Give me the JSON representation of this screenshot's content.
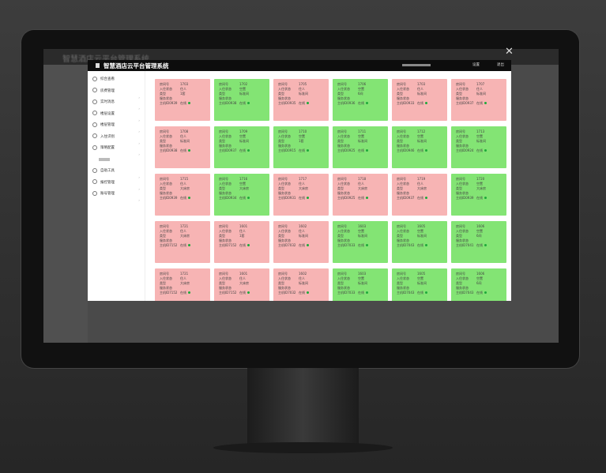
{
  "background_app": {
    "title": "智慧酒店云平台管理系统"
  },
  "modal": {
    "title": "智慧酒店云平台管理系统",
    "header_actions": [
      "设置",
      "退出"
    ],
    "menu": [
      "综合查看",
      "房费管理",
      "实时消息",
      "楼层设置",
      "楼层管理",
      "入住识别",
      "策略配置",
      "自助工具",
      "报控管理",
      "账号管理"
    ],
    "card_labels": [
      "房间号",
      "入住状态",
      "类型",
      "服务状态"
    ],
    "online": "在线",
    "rooms": [
      {
        "number": "1703",
        "status": "住人",
        "type": "1套",
        "host": "主机ID0939",
        "color": "#f7b4b4"
      },
      {
        "number": "1702",
        "status": "空置",
        "type": "标准间",
        "host": "主机ID0938",
        "color": "#83e474"
      },
      {
        "number": "1705",
        "status": "住人",
        "type": "标准间",
        "host": "主机ID0935",
        "color": "#f7b4b4"
      },
      {
        "number": "1706",
        "status": "空置",
        "type": "6间",
        "host": "主机ID0936",
        "color": "#83e474"
      },
      {
        "number": "1703",
        "status": "住人",
        "type": "标准间",
        "host": "主机ID0933",
        "color": "#f7b4b4"
      },
      {
        "number": "1707",
        "status": "住人",
        "type": "标准间",
        "host": "主机ID0937",
        "color": "#f7b4b4"
      },
      {
        "number": "1708",
        "status": "住人",
        "type": "标准间",
        "host": "主机ID0938",
        "color": "#f7b4b4"
      },
      {
        "number": "1709",
        "status": "空置",
        "type": "标准间",
        "host": "主机ID0937",
        "color": "#83e474"
      },
      {
        "number": "1710",
        "status": "空置",
        "type": "1套",
        "host": "主机ID0915",
        "color": "#83e474"
      },
      {
        "number": "1711",
        "status": "空置",
        "type": "标准间",
        "host": "主机ID0925",
        "color": "#83e474"
      },
      {
        "number": "1712",
        "status": "空置",
        "type": "标准间",
        "host": "主机ID0946",
        "color": "#83e474"
      },
      {
        "number": "1713",
        "status": "空置",
        "type": "标准间",
        "host": "主机ID0924",
        "color": "#83e474"
      },
      {
        "number": "1715",
        "status": "住人",
        "type": "大床房",
        "host": "主机ID0939",
        "color": "#f7b4b4"
      },
      {
        "number": "1716",
        "status": "空置",
        "type": "大床房",
        "host": "主机ID0934",
        "color": "#83e474"
      },
      {
        "number": "1717",
        "status": "住人",
        "type": "大床房",
        "host": "主机ID0931",
        "color": "#f7b4b4"
      },
      {
        "number": "1718",
        "status": "住人",
        "type": "大床房",
        "host": "主机ID0925",
        "color": "#f7b4b4"
      },
      {
        "number": "1719",
        "status": "住人",
        "type": "大床房",
        "host": "主机ID0937",
        "color": "#f7b4b4"
      },
      {
        "number": "1720",
        "status": "空置",
        "type": "大床房",
        "host": "主机ID0939",
        "color": "#83e474"
      },
      {
        "number": "1721",
        "status": "住人",
        "type": "大床房",
        "host": "主机ID7152",
        "color": "#f7b4b4"
      },
      {
        "number": "1601",
        "status": "住人",
        "type": "1套",
        "host": "主机ID7152",
        "color": "#f7b4b4"
      },
      {
        "number": "1602",
        "status": "住人",
        "type": "标准间",
        "host": "主机ID7032",
        "color": "#f7b4b4"
      },
      {
        "number": "1603",
        "status": "空置",
        "type": "标准间",
        "host": "主机ID7033",
        "color": "#83e474"
      },
      {
        "number": "1605",
        "status": "空置",
        "type": "标准间",
        "host": "主机ID7043",
        "color": "#83e474"
      },
      {
        "number": "1606",
        "status": "空置",
        "type": "6间",
        "host": "主机ID7041",
        "color": "#83e474"
      },
      {
        "number": "1721",
        "status": "住人",
        "type": "大床房",
        "host": "主机ID7152",
        "color": "#f7b4b4"
      },
      {
        "number": "1601",
        "status": "住人",
        "type": "大床房",
        "host": "主机ID7152",
        "color": "#f7b4b4"
      },
      {
        "number": "1602",
        "status": "住人",
        "type": "标准间",
        "host": "主机ID7032",
        "color": "#f7b4b4"
      },
      {
        "number": "1603",
        "status": "空置",
        "type": "标准间",
        "host": "主机ID7033",
        "color": "#83e474"
      },
      {
        "number": "1605",
        "status": "空置",
        "type": "标准间",
        "host": "主机ID7043",
        "color": "#83e474"
      },
      {
        "number": "1606",
        "status": "空置",
        "type": "6间",
        "host": "主机ID7043",
        "color": "#83e474"
      }
    ]
  }
}
